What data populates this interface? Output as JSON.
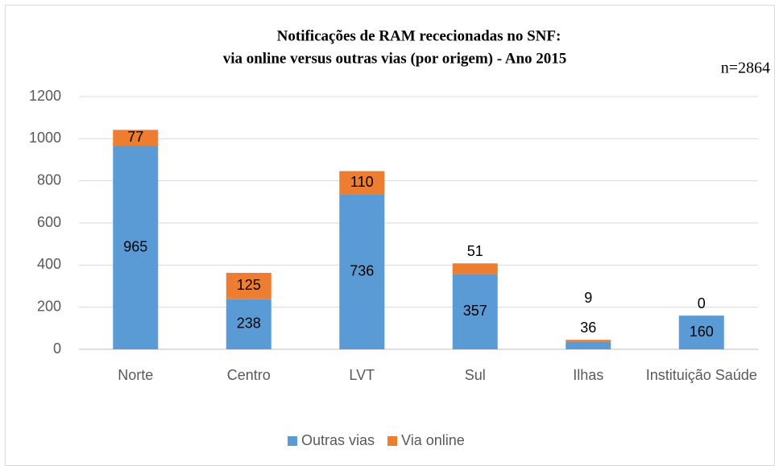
{
  "chart_data": {
    "type": "bar",
    "stacked": true,
    "title": [
      "Notificações de RAM rececionadas no SNF:",
      "via online versus outras vias (por origem) - Ano 2015"
    ],
    "annotation": "n=2864",
    "categories": [
      "Norte",
      "Centro",
      "LVT",
      "Sul",
      "Ilhas",
      "Instituição Saúde"
    ],
    "series": [
      {
        "name": "Outras vias",
        "color": "#5b9bd5",
        "values": [
          965,
          238,
          736,
          357,
          36,
          160
        ]
      },
      {
        "name": "Via online",
        "color": "#ed7d31",
        "values": [
          77,
          125,
          110,
          51,
          9,
          0
        ]
      }
    ],
    "ylim": [
      0,
      1200
    ],
    "yticks": [
      0,
      200,
      400,
      600,
      800,
      1000,
      1200
    ],
    "grid": true,
    "legend": "bottom"
  }
}
